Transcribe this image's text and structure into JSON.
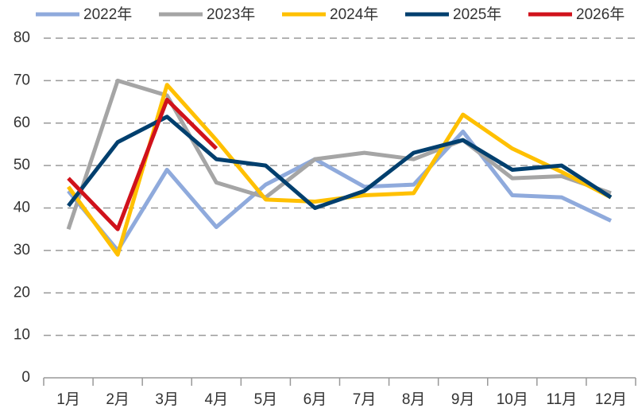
{
  "chart_data": {
    "type": "line",
    "categories": [
      "1月",
      "2月",
      "3月",
      "4月",
      "5月",
      "6月",
      "7月",
      "8月",
      "9月",
      "10月",
      "11月",
      "12月"
    ],
    "series": [
      {
        "name": "2022年",
        "color": "#8faadc",
        "values": [
          44,
          30,
          49,
          35.5,
          45.5,
          51.5,
          45,
          45.5,
          58,
          43,
          42.5,
          37
        ]
      },
      {
        "name": "2023年",
        "color": "#a5a5a5",
        "values": [
          35,
          70,
          66.5,
          46,
          42.5,
          51.5,
          53,
          51.5,
          56,
          47,
          47.5,
          43.5
        ]
      },
      {
        "name": "2024年",
        "color": "#ffc000",
        "values": [
          45,
          29,
          69,
          56,
          42,
          41.5,
          43,
          43.5,
          62,
          54,
          48.5,
          42.5
        ]
      },
      {
        "name": "2025年",
        "color": "#003f6e",
        "values": [
          40.5,
          55.5,
          61.5,
          51.5,
          50,
          40,
          44,
          53,
          56,
          49,
          50,
          42.5
        ]
      },
      {
        "name": "2026年",
        "color": "#d0121b",
        "values": [
          47,
          35,
          65.5,
          54,
          null,
          null,
          null,
          null,
          null,
          null,
          null,
          null
        ]
      }
    ],
    "ylim": [
      0,
      80
    ],
    "yticks": [
      0,
      10,
      20,
      30,
      40,
      50,
      60,
      70,
      80
    ],
    "grid": true,
    "legend": "top"
  }
}
